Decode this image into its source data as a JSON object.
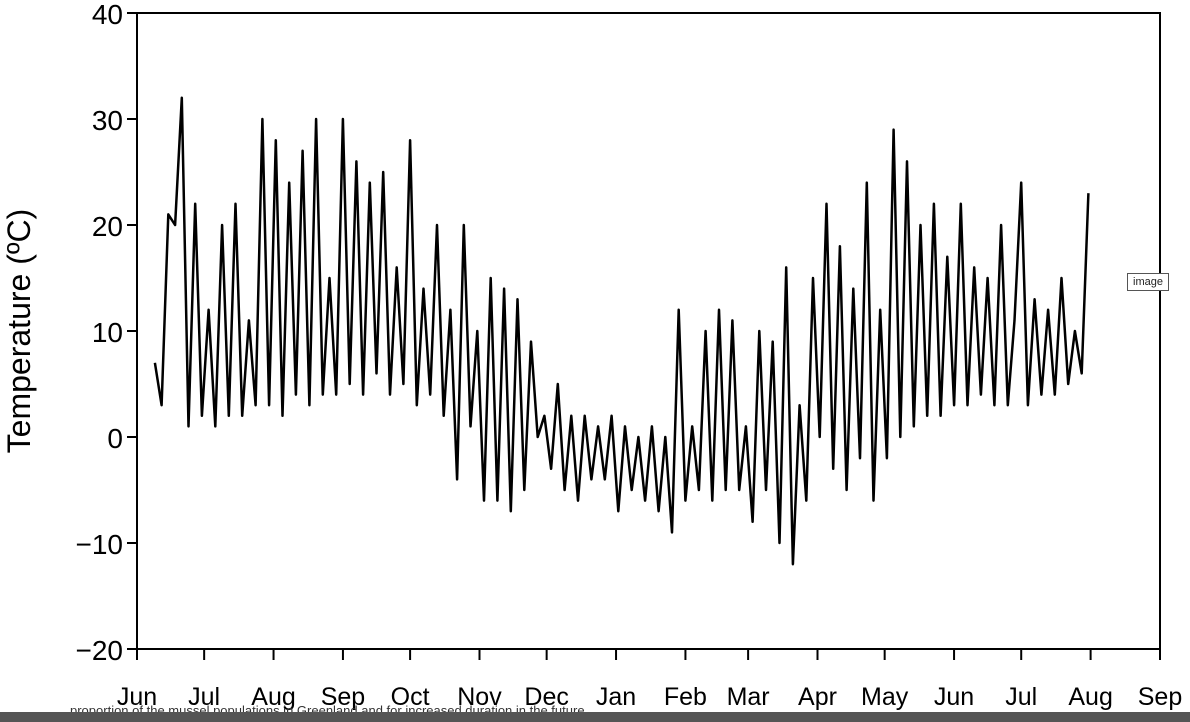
{
  "chart_data": {
    "type": "line",
    "ylabel": "Temperature (ºC)",
    "color": "#000000",
    "xlim": [
      0,
      457
    ],
    "xticks": [
      {
        "value": 0,
        "label": "Jun"
      },
      {
        "value": 30,
        "label": "Jul"
      },
      {
        "value": 61,
        "label": "Aug"
      },
      {
        "value": 92,
        "label": "Sep"
      },
      {
        "value": 122,
        "label": "Oct"
      },
      {
        "value": 153,
        "label": "Nov"
      },
      {
        "value": 183,
        "label": "Dec"
      },
      {
        "value": 214,
        "label": "Jan"
      },
      {
        "value": 245,
        "label": "Feb"
      },
      {
        "value": 273,
        "label": "Mar"
      },
      {
        "value": 304,
        "label": "Apr"
      },
      {
        "value": 334,
        "label": "May"
      },
      {
        "value": 365,
        "label": "Jun"
      },
      {
        "value": 395,
        "label": "Jul"
      },
      {
        "value": 426,
        "label": "Aug"
      },
      {
        "value": 457,
        "label": "Sep"
      }
    ],
    "ylim": [
      -20,
      40
    ],
    "yticks": [
      {
        "value": -20,
        "label": "−20"
      },
      {
        "value": -10,
        "label": "−10"
      },
      0,
      10,
      20,
      30,
      40
    ],
    "x": [
      8,
      11,
      14,
      17,
      20,
      23,
      26,
      29,
      32,
      35,
      38,
      41,
      44,
      47,
      50,
      53,
      56,
      59,
      62,
      65,
      68,
      71,
      74,
      77,
      80,
      83,
      86,
      89,
      92,
      95,
      98,
      101,
      104,
      107,
      110,
      113,
      116,
      119,
      122,
      125,
      128,
      131,
      134,
      137,
      140,
      143,
      146,
      149,
      152,
      155,
      158,
      161,
      164,
      167,
      170,
      173,
      176,
      179,
      182,
      185,
      188,
      191,
      194,
      197,
      200,
      203,
      206,
      209,
      212,
      215,
      218,
      221,
      224,
      227,
      230,
      233,
      236,
      239,
      242,
      245,
      248,
      251,
      254,
      257,
      260,
      263,
      266,
      269,
      272,
      275,
      278,
      281,
      284,
      287,
      290,
      293,
      296,
      299,
      302,
      305,
      308,
      311,
      314,
      317,
      320,
      323,
      326,
      329,
      332,
      335,
      338,
      341,
      344,
      347,
      350,
      353,
      356,
      359,
      362,
      365,
      368,
      371,
      374,
      377,
      380,
      383,
      386,
      389,
      392,
      395,
      398,
      401,
      404,
      407,
      410,
      413,
      416,
      419,
      422,
      425
    ],
    "values": [
      7,
      3,
      21,
      20,
      32,
      1,
      22,
      2,
      12,
      1,
      20,
      2,
      22,
      2,
      11,
      3,
      30,
      3,
      28,
      2,
      24,
      4,
      27,
      3,
      30,
      4,
      15,
      4,
      30,
      5,
      26,
      4,
      24,
      6,
      25,
      4,
      16,
      5,
      28,
      3,
      14,
      4,
      20,
      2,
      12,
      -4,
      20,
      1,
      10,
      -6,
      15,
      -6,
      14,
      -7,
      13,
      -5,
      9,
      0,
      2,
      -3,
      5,
      -5,
      2,
      -6,
      2,
      -4,
      1,
      -4,
      2,
      -7,
      1,
      -5,
      0,
      -6,
      1,
      -7,
      0,
      -9,
      12,
      -6,
      1,
      -5,
      10,
      -6,
      12,
      -5,
      11,
      -5,
      1,
      -8,
      10,
      -5,
      9,
      -10,
      16,
      -12,
      3,
      -6,
      15,
      0,
      22,
      -3,
      18,
      -5,
      14,
      -2,
      24,
      -6,
      12,
      -2,
      29,
      0,
      26,
      1,
      20,
      2,
      22,
      2,
      17,
      3,
      22,
      3,
      16,
      4,
      15,
      3,
      20,
      3,
      11,
      24,
      3,
      13,
      4,
      12,
      4,
      15,
      5,
      10,
      6,
      23
    ]
  },
  "tooltip": "image",
  "caption": "proportion of the mussel populations in Greenland and for increased duration in the future."
}
